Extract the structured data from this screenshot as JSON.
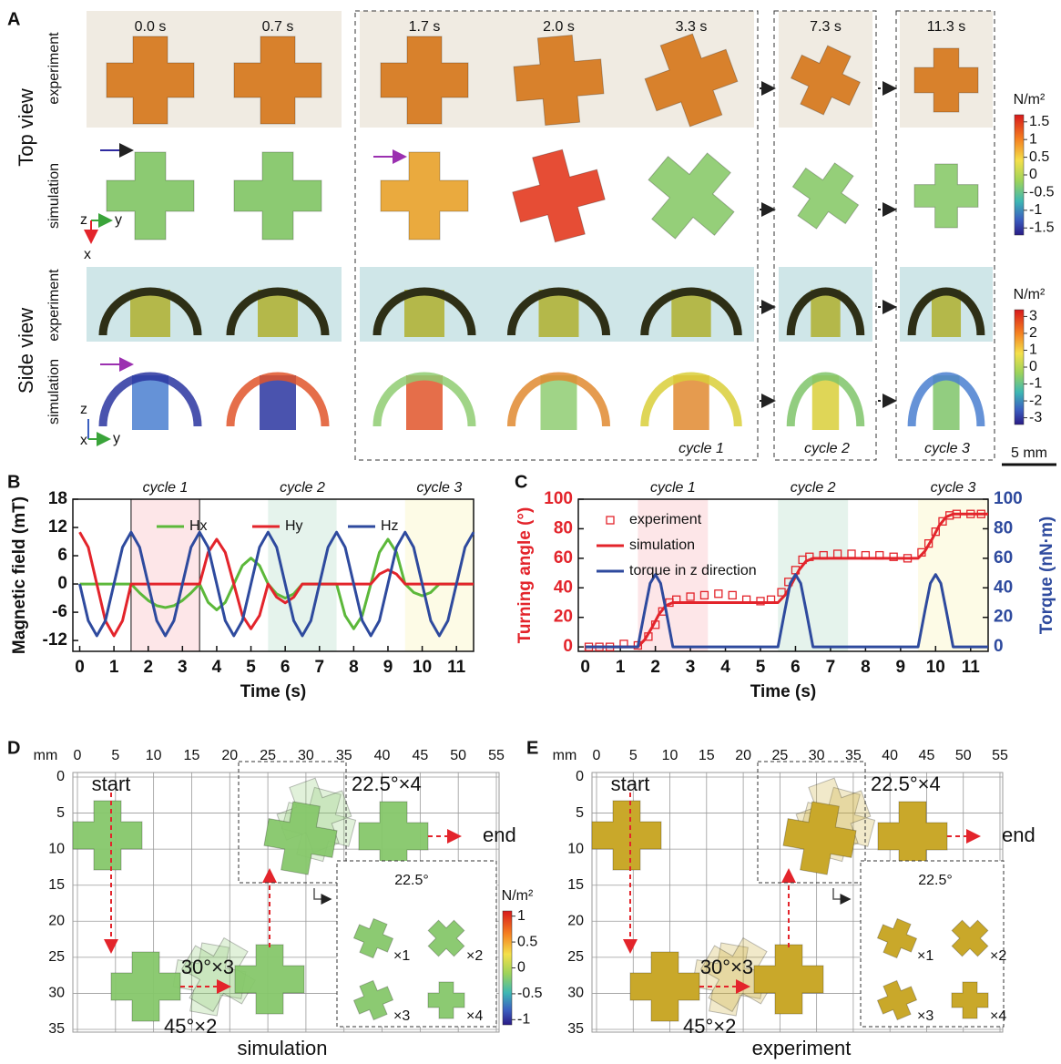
{
  "panel_a": {
    "label": "A",
    "times": [
      "0.0 s",
      "0.7 s",
      "1.7 s",
      "2.0 s",
      "3.3 s",
      "7.3 s",
      "11.3 s"
    ],
    "row_groups": [
      "Top view",
      "Side view"
    ],
    "row_labels": [
      "experiment",
      "simulation",
      "experiment",
      "simulation"
    ],
    "cycles": [
      "cycle 1",
      "cycle 2",
      "cycle 3"
    ],
    "axes_top": [
      "z",
      "y",
      "x"
    ],
    "axes_side": [
      "z",
      "x",
      "y"
    ],
    "colorbars": [
      {
        "label": "N/m²",
        "lim": [
          -1.7,
          1.7
        ],
        "ticks": [
          1.5,
          1,
          0.5,
          0,
          -0.5,
          -1,
          -1.5
        ]
      },
      {
        "label": "N/m²",
        "lim": [
          -3.4,
          3.4
        ],
        "ticks": [
          3,
          2,
          1,
          0,
          -1,
          -2,
          -3
        ]
      }
    ],
    "scale_bar": "5 mm"
  },
  "chart_data": [
    {
      "type": "line",
      "panel_label": "B",
      "ylabel": "Magnetic field (mT)",
      "xlabel": "Time (s)",
      "x": [
        0,
        0.25,
        0.5,
        0.75,
        1,
        1.25,
        1.5,
        1.75,
        2,
        2.25,
        2.5,
        2.75,
        3,
        3.25,
        3.5,
        3.75,
        4,
        4.25,
        4.5,
        4.75,
        5,
        5.25,
        5.5,
        5.75,
        6,
        6.25,
        6.5,
        6.75,
        7,
        7.25,
        7.5,
        7.75,
        8,
        8.25,
        8.5,
        8.75,
        9,
        9.25,
        9.5,
        9.75,
        10,
        10.25,
        10.5,
        10.75,
        11,
        11.25,
        11.5
      ],
      "series": [
        {
          "name": "Hx",
          "color": "#5cb83a",
          "values": [
            0,
            0,
            0,
            0,
            0,
            0,
            0,
            -1.9,
            -3.5,
            -4.6,
            -5,
            -4.6,
            -3.5,
            -1.9,
            0,
            -3.9,
            -5.5,
            -3.9,
            0,
            3.9,
            5.5,
            3.9,
            0,
            -2.1,
            -3,
            -2.1,
            0,
            0,
            0,
            0,
            0,
            -6.7,
            -9.5,
            -6.7,
            0,
            6.7,
            9.5,
            6.7,
            0,
            -1.8,
            -2.5,
            -1.8,
            0,
            0,
            0,
            0,
            0
          ]
        },
        {
          "name": "Hy",
          "color": "#e3242b",
          "values": [
            11,
            7.8,
            0,
            -7.8,
            -11,
            -7.8,
            0,
            0,
            0,
            0,
            0,
            0,
            0,
            0,
            0,
            6.7,
            9.5,
            6.7,
            0,
            -6.7,
            -9.5,
            -6.7,
            0,
            -2.8,
            -4,
            -2.8,
            0,
            0,
            0,
            0,
            0,
            0,
            0,
            0,
            0,
            2.1,
            3,
            2.1,
            0,
            0,
            0,
            0,
            0,
            0,
            0,
            0,
            0
          ]
        },
        {
          "name": "Hz",
          "color": "#2e4a9e",
          "values": [
            0,
            -7.8,
            -11,
            -7.8,
            0,
            7.8,
            11,
            7.8,
            0,
            -7.8,
            -11,
            -7.8,
            0,
            7.8,
            11,
            7.8,
            0,
            -7.8,
            -11,
            -7.8,
            0,
            7.8,
            11,
            7.8,
            0,
            -7.8,
            -11,
            -7.8,
            0,
            7.8,
            11,
            7.8,
            0,
            -7.8,
            -11,
            -7.8,
            0,
            7.8,
            11,
            7.8,
            0,
            -7.8,
            -11,
            -7.8,
            0,
            7.8,
            11
          ]
        }
      ],
      "xlim": [
        -0.2,
        11.5
      ],
      "ylim": [
        -14.3,
        18
      ],
      "xticks": [
        0,
        1,
        2,
        3,
        4,
        5,
        6,
        7,
        8,
        9,
        10,
        11
      ],
      "yticks": [
        -12,
        -6,
        0,
        6,
        12,
        18
      ],
      "bands": [
        {
          "label": "cycle 1",
          "range": [
            1.5,
            3.5
          ],
          "color": "#fde6e8"
        },
        {
          "label": "cycle 2",
          "range": [
            5.5,
            7.5
          ],
          "color": "#e5f3ec"
        },
        {
          "label": "cycle 3",
          "range": [
            9.5,
            11.5
          ],
          "color": "#fdfbe6"
        }
      ],
      "vlines": [
        1.5,
        3.5
      ]
    },
    {
      "type": "line",
      "panel_label": "C",
      "ylabel": "Turning angle (°)",
      "y2label": "Torque (nN·m)",
      "xlabel": "Time (s)",
      "series": [
        {
          "name": "experiment",
          "color": "#e3242b",
          "marker": "square",
          "line": false,
          "x": [
            0.1,
            0.4,
            0.7,
            1.1,
            1.5,
            1.8,
            2.0,
            2.2,
            2.4,
            2.6,
            3.0,
            3.4,
            3.8,
            4.2,
            4.6,
            5.0,
            5.3,
            5.6,
            5.8,
            6.0,
            6.2,
            6.4,
            6.8,
            7.2,
            7.6,
            8.0,
            8.4,
            8.8,
            9.2,
            9.6,
            9.8,
            10.0,
            10.2,
            10.4,
            10.6,
            11.0,
            11.3
          ],
          "values": [
            0,
            0,
            0,
            2,
            1,
            7,
            15,
            24,
            30,
            32,
            34,
            35,
            36,
            35,
            32,
            31,
            32,
            37,
            44,
            52,
            59,
            61,
            62,
            63,
            63,
            62,
            62,
            61,
            60,
            64,
            70,
            78,
            85,
            89,
            90,
            90,
            90
          ]
        },
        {
          "name": "simulation",
          "color": "#e3242b",
          "x": [
            0,
            1.5,
            1.7,
            1.9,
            2.1,
            2.3,
            2.5,
            3.5,
            5.5,
            5.7,
            5.9,
            6.1,
            6.3,
            6.5,
            7.5,
            9.5,
            9.7,
            9.9,
            10.1,
            10.3,
            10.5,
            11.5
          ],
          "values": [
            0,
            0,
            5,
            13,
            22,
            28,
            30,
            30,
            30,
            35,
            43,
            52,
            58,
            60,
            60,
            60,
            65,
            73,
            82,
            88,
            90,
            90
          ]
        },
        {
          "name": "torque in z direction",
          "color": "#2e4a9e",
          "axis": "y2",
          "x": [
            0,
            1.5,
            1.7,
            1.85,
            2,
            2.15,
            2.3,
            2.5,
            5.5,
            5.7,
            5.85,
            6,
            6.15,
            6.3,
            6.5,
            9.5,
            9.7,
            9.85,
            10,
            10.15,
            10.3,
            10.5,
            11.5
          ],
          "values": [
            0,
            0,
            25,
            43,
            49,
            43,
            25,
            0,
            0,
            25,
            43,
            49,
            43,
            25,
            0,
            0,
            25,
            43,
            49,
            43,
            25,
            0,
            0
          ]
        }
      ],
      "xlim": [
        -0.2,
        11.5
      ],
      "ylim": [
        -3,
        100
      ],
      "y2lim": [
        -3,
        100
      ],
      "xticks": [
        0,
        1,
        2,
        3,
        4,
        5,
        6,
        7,
        8,
        9,
        10,
        11
      ],
      "yticks": [
        0,
        20,
        40,
        60,
        80,
        100
      ],
      "y2ticks": [
        0,
        20,
        40,
        60,
        80,
        100
      ],
      "bands": [
        {
          "label": "cycle 1",
          "range": [
            1.5,
            3.5
          ],
          "color": "#fde6e8"
        },
        {
          "label": "cycle 2",
          "range": [
            5.5,
            7.5
          ],
          "color": "#e5f3ec"
        },
        {
          "label": "cycle 3",
          "range": [
            9.5,
            11.5
          ],
          "color": "#fdfbe6"
        }
      ]
    }
  ],
  "panel_d": {
    "panel_label": "D",
    "unit": "mm",
    "xlim": [
      0,
      55
    ],
    "ylim": [
      0,
      35
    ],
    "xticks": [
      0,
      5,
      10,
      15,
      20,
      25,
      30,
      35,
      40,
      45,
      50,
      55
    ],
    "yticks": [
      0,
      5,
      10,
      15,
      20,
      25,
      30,
      35
    ],
    "start": "start",
    "end": "end",
    "rotation_top": "22.5°×4",
    "rotation_mid": "30°×3",
    "rotation_bottom": "45°×2",
    "inset_angle": "22.5°",
    "steps": [
      "×1",
      "×2",
      "×3",
      "×4"
    ],
    "title": "simulation",
    "colorbar": {
      "label": "N/m²",
      "lim": [
        -1.1,
        1.1
      ],
      "ticks": [
        1,
        0.5,
        0,
        -0.5,
        -1
      ]
    }
  },
  "panel_e": {
    "panel_label": "E",
    "unit": "mm",
    "xlim": [
      0,
      55
    ],
    "ylim": [
      0,
      35
    ],
    "xticks": [
      0,
      5,
      10,
      15,
      20,
      25,
      30,
      35,
      40,
      45,
      50,
      55
    ],
    "yticks": [
      0,
      5,
      10,
      15,
      20,
      25,
      30,
      35
    ],
    "start": "start",
    "end": "end",
    "rotation_top": "22.5°×4",
    "rotation_mid": "30°×3",
    "rotation_bottom": "45°×2",
    "inset_angle": "22.5°",
    "steps": [
      "×1",
      "×2",
      "×3",
      "×4"
    ],
    "title": "experiment"
  }
}
